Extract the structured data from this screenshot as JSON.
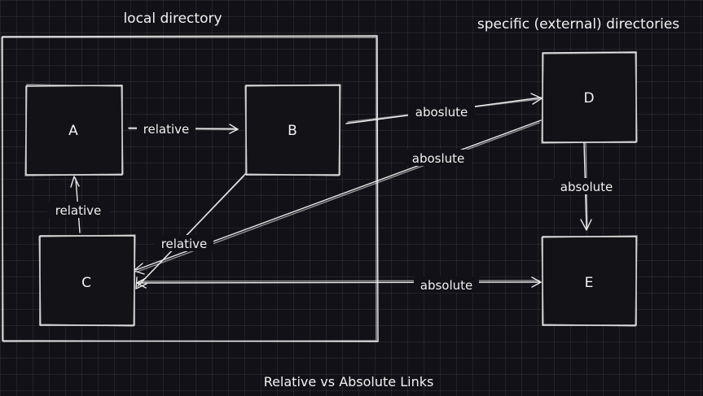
{
  "title": "Relative vs Absolute Links",
  "groups": {
    "local": "local directory",
    "external": "specific (external) directories"
  },
  "nodes": {
    "a": "A",
    "b": "B",
    "c": "C",
    "d": "D",
    "e": "E"
  },
  "edges": {
    "a_to_b": "relative",
    "c_to_a": "relative",
    "b_to_c": "relative",
    "b_to_d": "aboslute",
    "d_to_c": "aboslute",
    "d_to_e": "absolute",
    "c_to_e": "absolute"
  }
}
